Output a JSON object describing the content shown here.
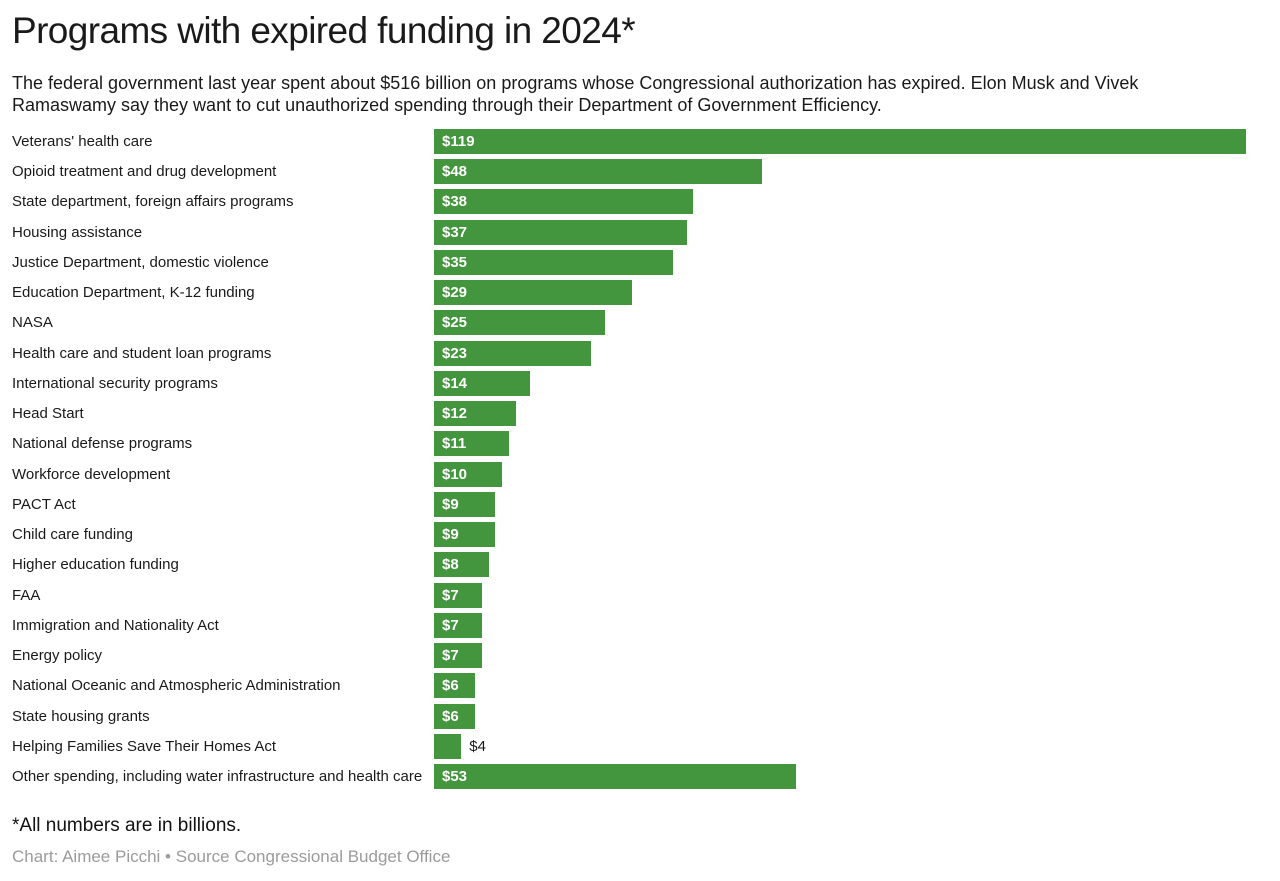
{
  "header": {
    "title": "Programs with expired funding in 2024*",
    "subtitle": "The federal government last year spent about $516 billion on programs whose Congressional authorization has expired. Elon Musk and Vivek Ramaswamy say they want to cut unauthorized spending through their Department of Government Efficiency."
  },
  "chart_data": {
    "type": "bar",
    "orientation": "horizontal",
    "title": "Programs with expired funding in 2024*",
    "unit": "billions of dollars",
    "categories": [
      "Veterans' health care",
      "Opioid treatment and drug development",
      "State department, foreign affairs programs",
      "Housing assistance",
      "Justice Department, domestic violence",
      "Education Department, K-12 funding",
      "NASA",
      "Health care and student loan programs",
      "International security programs",
      "Head Start",
      "National defense programs",
      "Workforce development",
      "PACT Act",
      "Child care funding",
      "Higher education funding",
      "FAA",
      "Immigration and Nationality Act",
      "Energy policy",
      "National Oceanic and Atmospheric Administration",
      "State housing grants",
      "Helping Families Save Their Homes Act",
      "Other spending, including water infrastructure and health care"
    ],
    "values": [
      119,
      48,
      38,
      37,
      35,
      29,
      25,
      23,
      14,
      12,
      11,
      10,
      9,
      9,
      8,
      7,
      7,
      7,
      6,
      6,
      4,
      53
    ],
    "value_labels": [
      "$119",
      "$48",
      "$38",
      "$37",
      "$35",
      "$29",
      "$25",
      "$23",
      "$14",
      "$12",
      "$11",
      "$10",
      "$9",
      "$9",
      "$8",
      "$7",
      "$7",
      "$7",
      "$6",
      "$6",
      "$4",
      "$53"
    ],
    "xlim": [
      0,
      119
    ],
    "grid": false,
    "legend": false,
    "xlabel": "",
    "ylabel": ""
  },
  "footer": {
    "note": "*All numbers are in billions.",
    "credit": "Chart: Aimee Picchi • Source Congressional Budget Office"
  },
  "colors": {
    "bar": "#43963d",
    "label_text": "#1a1a1a",
    "value_text_inside": "#ffffff",
    "value_text_outside": "#1a1a1a",
    "credit_text": "#9b9b9b",
    "background": "#ffffff"
  }
}
